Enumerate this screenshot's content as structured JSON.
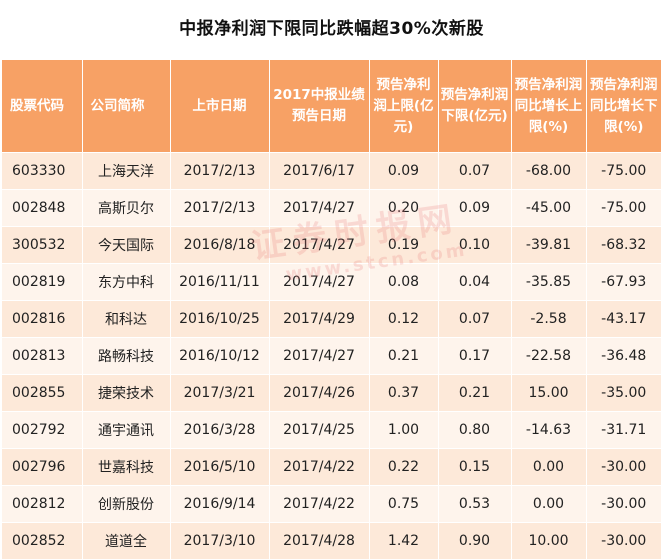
{
  "title": "中报净利润下限同比跌幅超30%次新股",
  "headers": [
    "股票代码",
    "公司简称",
    "上市日期",
    "2017中报业绩预告日期",
    "预告净利润上限(亿元)",
    "预告净利润下限(亿元)",
    "预告净利润同比增长上限(%)",
    "预告净利润同比增长下限(%)"
  ],
  "rows": [
    [
      "603330",
      "上海天洋",
      "2017/2/13",
      "2017/6/17",
      "0.09",
      "0.07",
      "-68.00",
      "-75.00"
    ],
    [
      "002848",
      "高斯贝尔",
      "2017/2/13",
      "2017/4/27",
      "0.20",
      "0.09",
      "-45.00",
      "-75.00"
    ],
    [
      "300532",
      "今天国际",
      "2016/8/18",
      "2017/4/27",
      "0.19",
      "0.10",
      "-39.81",
      "-68.32"
    ],
    [
      "002819",
      "东方中科",
      "2016/11/11",
      "2017/4/27",
      "0.08",
      "0.04",
      "-35.85",
      "-67.93"
    ],
    [
      "002816",
      "和科达",
      "2016/10/25",
      "2017/4/29",
      "0.12",
      "0.07",
      "-2.58",
      "-43.17"
    ],
    [
      "002813",
      "路畅科技",
      "2016/10/12",
      "2017/4/27",
      "0.21",
      "0.17",
      "-22.58",
      "-36.48"
    ],
    [
      "002855",
      "捷荣技术",
      "2017/3/21",
      "2017/4/26",
      "0.37",
      "0.21",
      "15.00",
      "-35.00"
    ],
    [
      "002792",
      "通宇通讯",
      "2016/3/28",
      "2017/4/25",
      "1.00",
      "0.80",
      "-14.63",
      "-31.71"
    ],
    [
      "002796",
      "世嘉科技",
      "2016/5/10",
      "2017/4/22",
      "0.22",
      "0.15",
      "0.00",
      "-30.00"
    ],
    [
      "002812",
      "创新股份",
      "2016/9/14",
      "2017/4/22",
      "0.75",
      "0.53",
      "0.00",
      "-30.00"
    ],
    [
      "002852",
      "道道全",
      "2017/3/10",
      "2017/4/28",
      "1.42",
      "0.90",
      "10.00",
      "-30.00"
    ]
  ],
  "watermark": {
    "main": "证券时报网",
    "url": "www.stcn.com"
  }
}
